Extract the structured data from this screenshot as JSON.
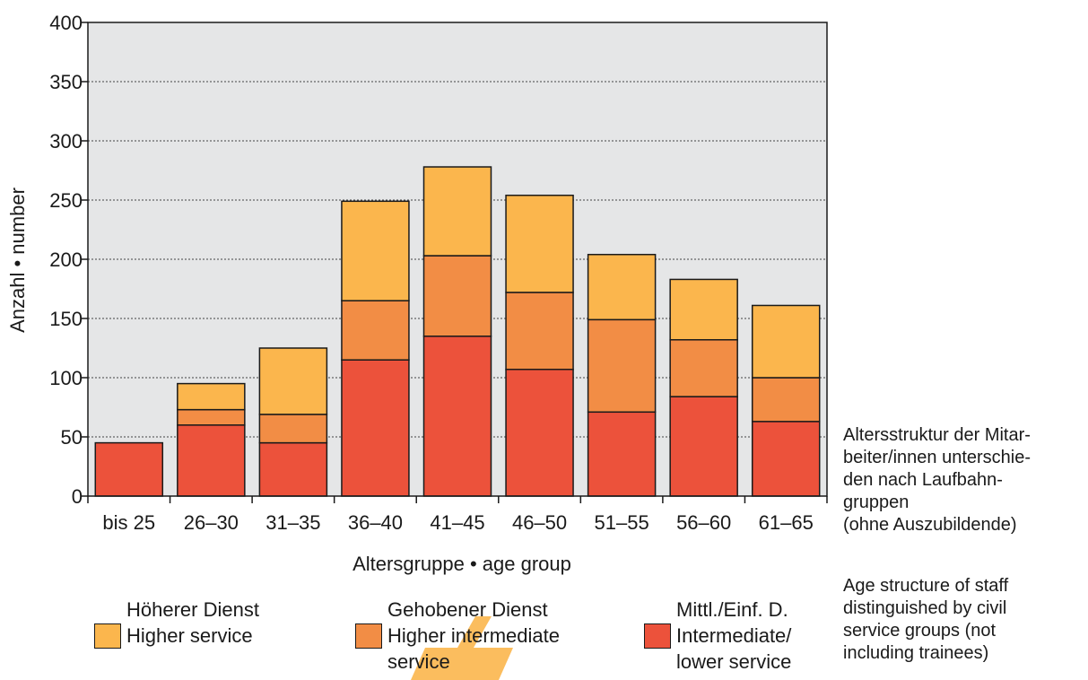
{
  "chart_data": {
    "type": "bar",
    "stacked": true,
    "categories": [
      "bis 25",
      "26–30",
      "31–35",
      "36–40",
      "41–45",
      "46–50",
      "51–55",
      "56–60",
      "61–65"
    ],
    "series": [
      {
        "name": "Mittl./Einf. D. Intermediate/ lower service",
        "color": "#ec523b",
        "values": [
          45,
          60,
          45,
          115,
          135,
          107,
          71,
          84,
          63
        ]
      },
      {
        "name": "Gehobener Dienst Higher intermediate service",
        "color": "#f28d45",
        "values": [
          0,
          13,
          24,
          50,
          68,
          65,
          78,
          48,
          37
        ]
      },
      {
        "name": "Höherer Dienst Higher service",
        "color": "#fbb64d",
        "values": [
          0,
          22,
          56,
          84,
          75,
          82,
          55,
          51,
          61
        ]
      }
    ],
    "xlabel": "Altersgruppe • age group",
    "ylabel": "Anzahl • number",
    "ylim": [
      0,
      400
    ],
    "yticks": [
      0,
      50,
      100,
      150,
      200,
      250,
      300,
      350,
      400
    ],
    "grid": "horizontal dotted",
    "plot_background": "#e5e6e7",
    "legend_position": "bottom"
  },
  "legend": {
    "higher": {
      "line1": "Höherer Dienst",
      "line2": "Higher service",
      "color": "#fbb64d"
    },
    "higher_intermediate": {
      "line1": "Gehobener Dienst",
      "line2": "Higher intermediate",
      "line3": "service",
      "color": "#f28d45"
    },
    "intermediate_lower": {
      "line1": "Mittl./Einf. D.",
      "line2": "Intermediate/",
      "line3": "lower service",
      "color": "#ec523b"
    }
  },
  "caption": {
    "german": [
      "Altersstruktur der Mitar-",
      "beiter/innen unterschie-",
      "den nach Laufbahn-",
      "gruppen",
      "(ohne Auszubildende)"
    ],
    "english": [
      "Age structure of staff",
      "distinguished by civil",
      "service groups (not",
      "including trainees)"
    ]
  }
}
